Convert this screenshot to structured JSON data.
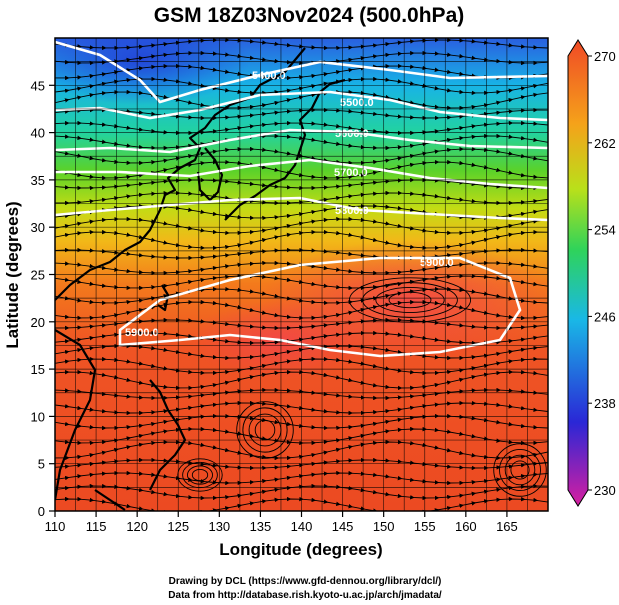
{
  "title": "GSM 18Z03Nov2024 (500.0hPa)",
  "map": {
    "xlabel": "Longitude (degrees)",
    "ylabel": "Latitude  (degrees)",
    "x_ticks": [
      "110",
      "115",
      "120",
      "125",
      "130",
      "135",
      "140",
      "145",
      "150",
      "155",
      "160",
      "165"
    ],
    "y_ticks": [
      "0",
      "5",
      "10",
      "15",
      "20",
      "25",
      "30",
      "35",
      "40",
      "45"
    ],
    "xlim": [
      110,
      170
    ],
    "ylim": [
      0,
      50
    ],
    "grid": true,
    "contour_labels": [
      "5400.0",
      "5500.0",
      "5600.0",
      "5700.0",
      "5800.0",
      "5900.0",
      "5900.0"
    ]
  },
  "colorbar": {
    "ticks": [
      "270",
      "262",
      "254",
      "246",
      "238",
      "230"
    ],
    "range": [
      230,
      270
    ],
    "colors": [
      "#d81fa0",
      "#2a27d6",
      "#19b8e6",
      "#2fd35a",
      "#b9e01a",
      "#f5a21a",
      "#f04a26"
    ]
  },
  "credits": {
    "line1": "Drawing by DCL (https://www.gfd-dennou.org/library/dcl/)",
    "line2": "Data from http://database.rish.kyoto-u.ac.jp/arch/jmadata/"
  }
}
